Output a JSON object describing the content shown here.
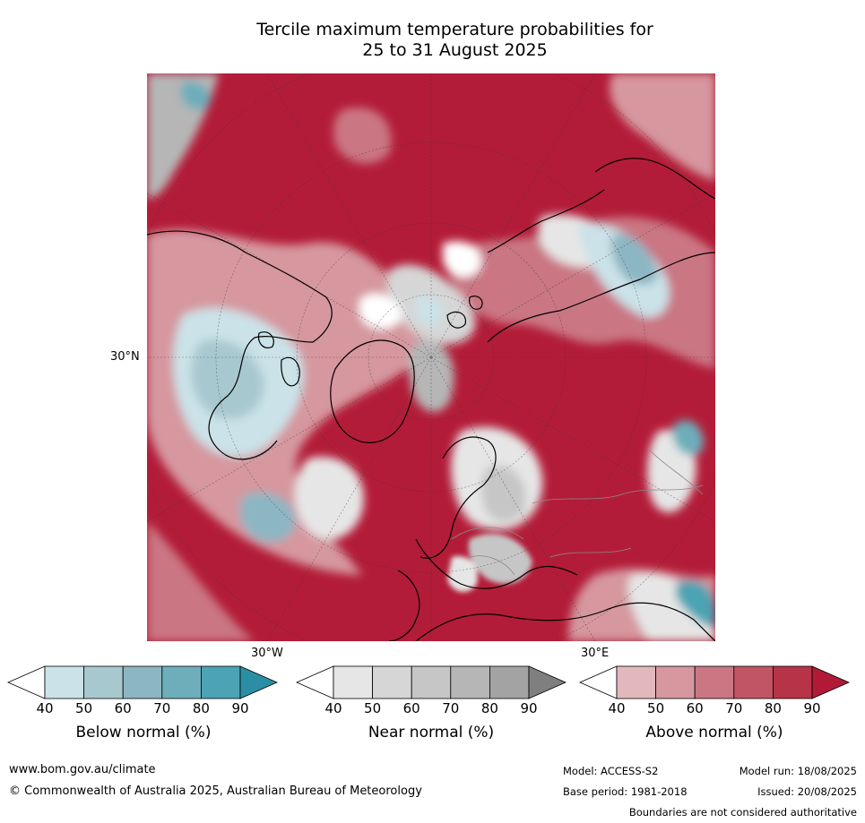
{
  "title_line1": "Tercile maximum temperature probabilities for",
  "title_line2": "25 to 31 August 2025",
  "map": {
    "lat_label": "30°N",
    "lon_label_left": "30°W",
    "lon_label_right": "30°E"
  },
  "colorbars": [
    {
      "name": "below-normal",
      "label": "Below normal (%)",
      "ticks": [
        "40",
        "50",
        "60",
        "70",
        "80",
        "90"
      ],
      "colors": [
        "#ffffff",
        "#cae2e8",
        "#a8c8cf",
        "#8db6c3",
        "#6daeba",
        "#4ba3b4",
        "#2a8fa4"
      ]
    },
    {
      "name": "near-normal",
      "label": "Near normal (%)",
      "ticks": [
        "40",
        "50",
        "60",
        "70",
        "80",
        "90"
      ],
      "colors": [
        "#ffffff",
        "#e6e6e6",
        "#d6d6d6",
        "#c6c6c6",
        "#b6b6b6",
        "#a3a3a3",
        "#7f7f7f"
      ]
    },
    {
      "name": "above-normal",
      "label": "Above normal (%)",
      "ticks": [
        "40",
        "50",
        "60",
        "70",
        "80",
        "90"
      ],
      "colors": [
        "#ffffff",
        "#e3b8bd",
        "#d6979f",
        "#ca7683",
        "#c15565",
        "#b73448",
        "#b11a36"
      ]
    }
  ],
  "footer": {
    "website": "www.bom.gov.au/climate",
    "copyright": "© Commonwealth of Australia 2025, Australian Bureau of Meteorology",
    "model": "Model: ACCESS-S2",
    "base_period": "Base period: 1981-2018",
    "model_run": "Model run: 18/08/2025",
    "issued": "Issued: 20/08/2025",
    "disclaimer": "Boundaries are not considered authoritative"
  }
}
